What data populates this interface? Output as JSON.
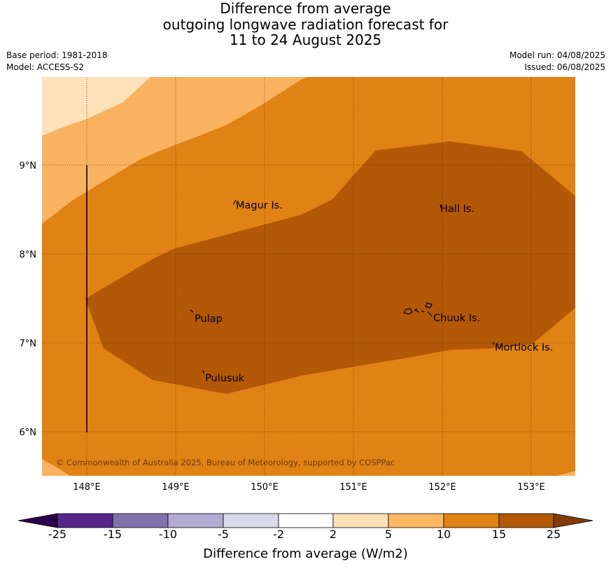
{
  "title": {
    "line1": "Difference from average",
    "line2": "outgoing longwave radiation forecast for",
    "line3": "11 to 24 August 2025"
  },
  "meta": {
    "base_period": "Base period: 1981-2018",
    "model": "Model: ACCESS-S2",
    "model_run": "Model run: 04/08/2025",
    "issued": "Issued: 06/08/2025"
  },
  "map": {
    "lon_labels": [
      "148°E",
      "149°E",
      "150°E",
      "151°E",
      "152°E",
      "153°E"
    ],
    "lat_labels": [
      "9°N",
      "8°N",
      "7°N",
      "6°N"
    ],
    "places": [
      "Magur Is.",
      "Hall Is.",
      "Pulap",
      "Chuuk Is.",
      "Mortlock Is.",
      "Pulusuk"
    ],
    "copyright": "© Commonwealth of Australia 2025, Bureau of Meteorology, supported by COSPPac",
    "fill_colors": {
      "2_to_5": "#fde1b8",
      "5_to_10": "#f9b25f",
      "10_to_15": "#e08214",
      "15_to_25": "#b35806"
    }
  },
  "colorbar": {
    "tick_labels": [
      "-25",
      "-15",
      "-10",
      "-5",
      "-2",
      "2",
      "5",
      "10",
      "15",
      "25"
    ],
    "colors": [
      "#2d004b",
      "#542788",
      "#8073ac",
      "#b2abd2",
      "#d8daeb",
      "#ffffff",
      "#fee0b6",
      "#fdb863",
      "#e08214",
      "#b35806",
      "#7f3b08"
    ],
    "title": "Difference from average (W/m2)"
  }
}
